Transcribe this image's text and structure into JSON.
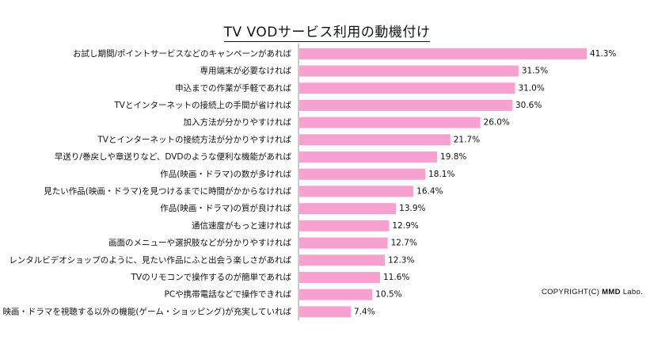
{
  "chart_data": {
    "type": "bar",
    "orientation": "horizontal",
    "title": "TV VODサービス利用の動機付け",
    "bar_color": "#f7a1d1",
    "value_suffix": "%",
    "categories": [
      "お試し期間/ポイントサービスなどのキャンペーンがあれば",
      "専用端末が必要なければ",
      "申込までの作業が手軽であれば",
      "TVとインターネットの接続上の手間が省ければ",
      "加入方法が分かりやすければ",
      "TVとインターネットの接続方法が分かりやすければ",
      "早送り/巻戻しや章送りなど、DVDのような便利な機能があれば",
      "作品(映画・ドラマ)の数が多ければ",
      "見たい作品(映画・ドラマ)を見つけるまでに時間がかからなければ",
      "作品(映画・ドラマ)の質が良ければ",
      "通信速度がもっと速ければ",
      "画面のメニューや選択肢などが分かりやすければ",
      "レンタルビデオショップのように、見たい作品にふと出会う楽しさがあれば",
      "TVのリモコンで操作するのが簡単であれば",
      "PCや携帯電話などで操作できれば",
      "映画・ドラマを視聴する以外の機能(ゲーム・ショッピング)が充実していれば"
    ],
    "values": [
      41.3,
      31.5,
      31.0,
      30.6,
      26.0,
      21.7,
      19.8,
      18.1,
      16.4,
      13.9,
      12.9,
      12.7,
      12.3,
      11.6,
      10.5,
      7.4
    ],
    "labels": [
      "41.3%",
      "31.5%",
      "31.0%",
      "30.6%",
      "26.0%",
      "21.7%",
      "19.8%",
      "18.1%",
      "16.4%",
      "13.9%",
      "12.9%",
      "12.7%",
      "12.3%",
      "11.6%",
      "10.5%",
      "7.4%"
    ],
    "grid": false,
    "legend": "none"
  },
  "copyright_prefix": "COPYRIGHT(C)",
  "copyright_brand": "MMD",
  "copyright_suffix": "Labo."
}
